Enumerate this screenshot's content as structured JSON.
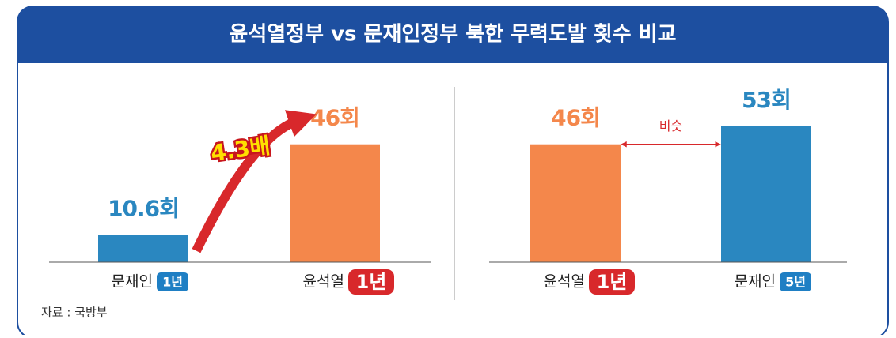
{
  "title": "윤석열정부 vs 문재인정부 북한 무력도발 횟수 비교",
  "source": "자료 : 국방부",
  "chart_data": [
    {
      "type": "bar",
      "categories": [
        "문재인",
        "윤석열"
      ],
      "badges": [
        "1년",
        "1년"
      ],
      "badge_colors": [
        "#1f7fc4",
        "#d8282b"
      ],
      "values": [
        10.6,
        46
      ],
      "value_labels": [
        "10.6회",
        "46회"
      ],
      "colors": [
        "#2a87c0",
        "#f4874b"
      ],
      "annotation": "4.3배"
    },
    {
      "type": "bar",
      "categories": [
        "윤석열",
        "문재인"
      ],
      "badges": [
        "1년",
        "5년"
      ],
      "badge_colors": [
        "#d8282b",
        "#1f7fc4"
      ],
      "values": [
        46,
        53
      ],
      "value_labels": [
        "46회",
        "53회"
      ],
      "colors": [
        "#f4874b",
        "#2a87c0"
      ],
      "annotation": "비슷"
    }
  ]
}
